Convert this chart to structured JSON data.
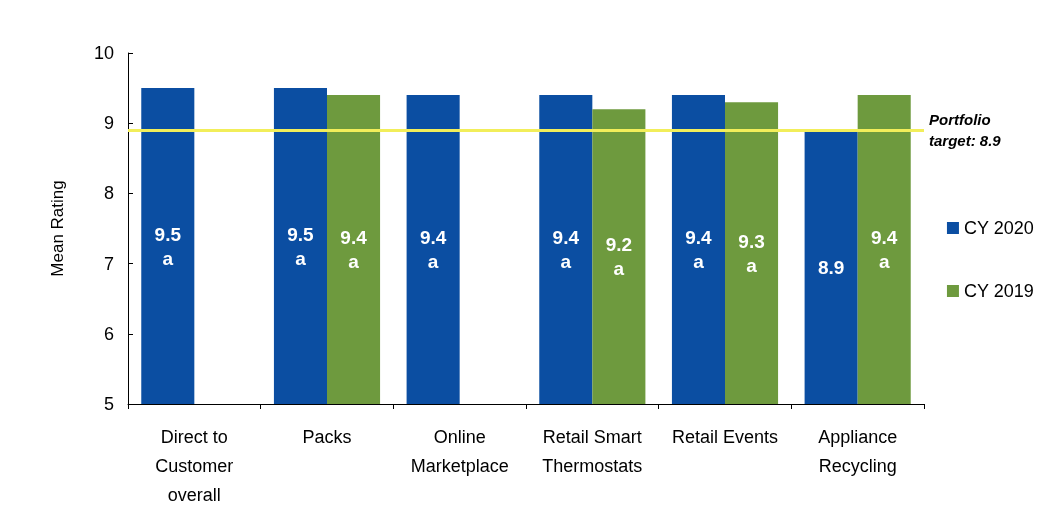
{
  "chart_data": {
    "type": "bar",
    "ylabel": "Mean Rating",
    "categories": [
      "Direct to\nCustomer\noverall",
      "Packs",
      "Online\nMarketplace",
      "Retail Smart\nThermostats",
      "Retail Events",
      "Appliance\nRecycling"
    ],
    "series": [
      {
        "name": "CY 2020",
        "color": "#0b4ea2",
        "values": [
          9.5,
          9.5,
          9.4,
          9.4,
          9.4,
          8.9
        ],
        "value_labels": [
          "9.5\na",
          "9.5\na",
          "9.4\na",
          "9.4\na",
          "9.4\na",
          "8.9"
        ]
      },
      {
        "name": "CY 2019",
        "color": "#6e9a3e",
        "values": [
          null,
          9.4,
          null,
          9.2,
          9.3,
          9.4
        ],
        "value_labels": [
          null,
          "9.4\na",
          null,
          "9.2\na",
          "9.3\na",
          "9.4\na"
        ]
      }
    ],
    "ylim": [
      5,
      10
    ],
    "yticks": [
      5,
      6,
      7,
      8,
      9,
      10
    ],
    "grid": false,
    "legend": "right",
    "ref_lines": [
      {
        "axis": "y",
        "value": 8.9,
        "label": "Portfolio\ntarget: 8.9",
        "color": "#f2ee5a"
      }
    ]
  }
}
